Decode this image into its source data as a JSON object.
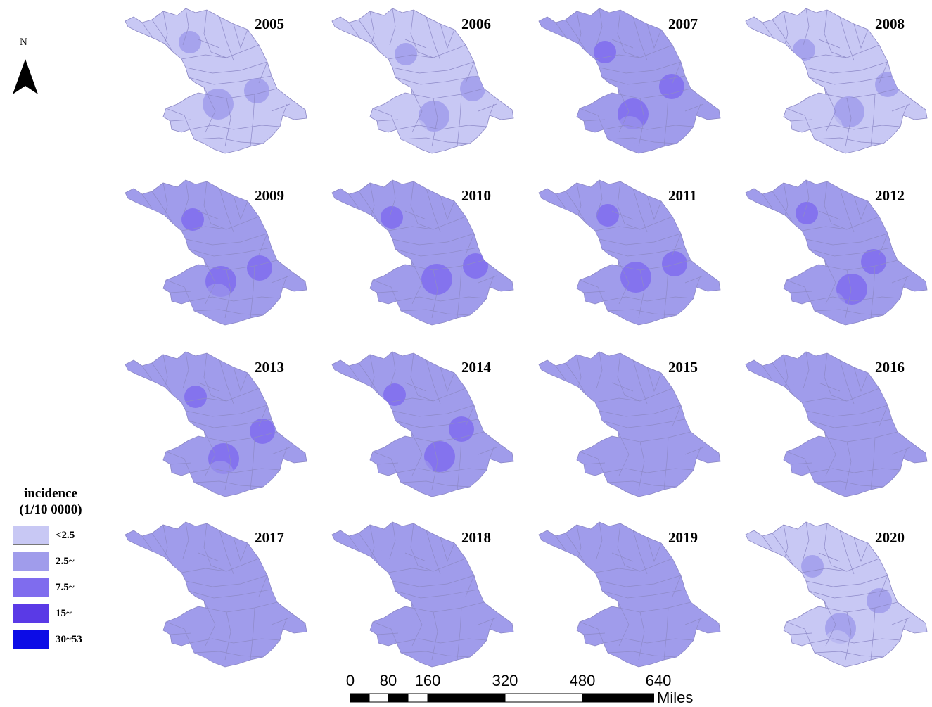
{
  "north_arrow": {
    "label": "N"
  },
  "legend": {
    "title_line1": "incidence",
    "title_line2": "(1/10 0000)",
    "classes": [
      {
        "label": "<2.5",
        "color": "#c8c8f4"
      },
      {
        "label": "2.5~",
        "color": "#a09ceb"
      },
      {
        "label": "7.5~",
        "color": "#7f6cee"
      },
      {
        "label": "15~",
        "color": "#5a3ae6"
      },
      {
        "label": "30~53",
        "color": "#0c0ce6"
      }
    ]
  },
  "maps": [
    {
      "year": "2005",
      "base_class": 0,
      "high_class": 1
    },
    {
      "year": "2006",
      "base_class": 0,
      "high_class": 1
    },
    {
      "year": "2007",
      "base_class": 1,
      "high_class": 2
    },
    {
      "year": "2008",
      "base_class": 0,
      "high_class": 1
    },
    {
      "year": "2009",
      "base_class": 1,
      "high_class": 2
    },
    {
      "year": "2010",
      "base_class": 1,
      "high_class": 2
    },
    {
      "year": "2011",
      "base_class": 1,
      "high_class": 2
    },
    {
      "year": "2012",
      "base_class": 1,
      "high_class": 2
    },
    {
      "year": "2013",
      "base_class": 1,
      "high_class": 2
    },
    {
      "year": "2014",
      "base_class": 1,
      "high_class": 2
    },
    {
      "year": "2015",
      "base_class": 1,
      "high_class": 1
    },
    {
      "year": "2016",
      "base_class": 1,
      "high_class": 1
    },
    {
      "year": "2017",
      "base_class": 1,
      "high_class": 1
    },
    {
      "year": "2018",
      "base_class": 1,
      "high_class": 1
    },
    {
      "year": "2019",
      "base_class": 1,
      "high_class": 1
    },
    {
      "year": "2020",
      "base_class": 0,
      "high_class": 1
    }
  ],
  "scale_bar": {
    "ticks": [
      "0",
      "80",
      "160",
      "320",
      "480",
      "640"
    ],
    "unit": "Miles"
  }
}
